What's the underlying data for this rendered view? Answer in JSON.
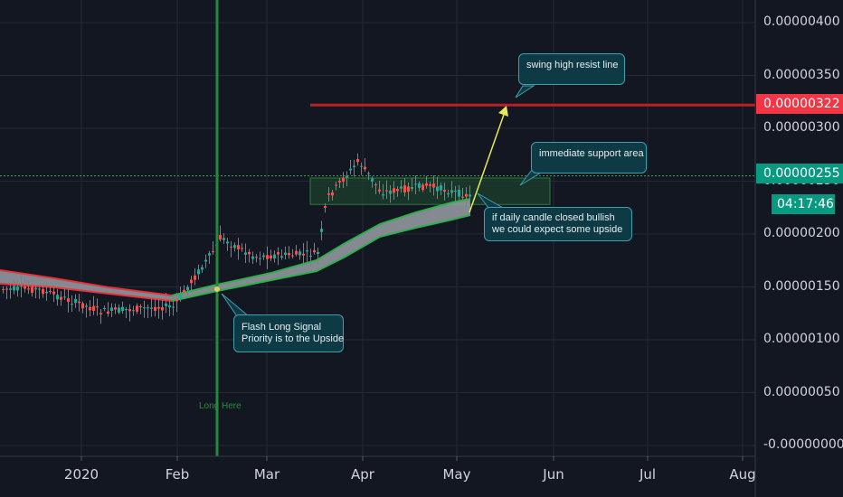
{
  "chart_data": {
    "type": "candlestick",
    "y_tick_labels": [
      "0.00000400",
      "0.00000350",
      "0.00000300",
      "0.00000250",
      "0.00000200",
      "0.00000150",
      "0.00000100",
      "0.00000050",
      "-0.00000000"
    ],
    "y_ticks": [
      4e-06,
      3.5e-06,
      3e-06,
      2.5e-06,
      2e-06,
      1.5e-06,
      1e-06,
      5e-07,
      0
    ],
    "x_tick_labels": [
      "2020",
      "Feb",
      "Mar",
      "Apr",
      "May",
      "Jun",
      "Jul",
      "Aug"
    ],
    "ylim": [
      -3e-08,
      4.25e-06
    ],
    "resistance_price_label": "0.00000322",
    "resistance_price": 3.22e-06,
    "current_price_label": "0.00000255",
    "current_price": 2.55e-06,
    "countdown": "04:17:46",
    "support_zone": [
      2.28e-06,
      2.53e-06
    ],
    "signal_marker_date": "Feb 14",
    "grid": true,
    "colors": {
      "resistance": "#f23645",
      "current": "#089981",
      "up": "#26a69a",
      "down": "#ef5350",
      "signal_line": "#1f8a3a",
      "band_fill": "#9a9ea6",
      "arrow": "#e8e85a"
    },
    "annotations": {
      "resist": "swing high resist line",
      "support": "immediate support area",
      "daily": [
        "if daily candle closed bullish",
        "we could expect some upside"
      ],
      "flash": [
        "Flash Long Signal",
        "Priority is to the Upside"
      ],
      "long_here": "Long Here"
    }
  }
}
